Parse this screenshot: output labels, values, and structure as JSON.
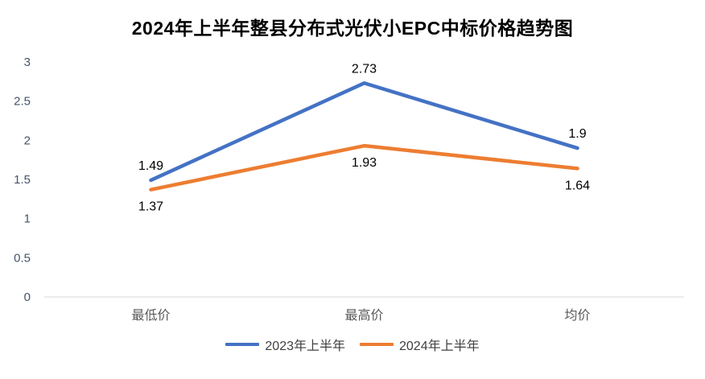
{
  "chart_data": {
    "type": "line",
    "title": "2024年上半年整县分布式光伏小EPC中标价格趋势图",
    "categories": [
      "最低价",
      "最高价",
      "均价"
    ],
    "series": [
      {
        "name": "2023年上半年",
        "color": "#4472C4",
        "values": [
          1.49,
          2.73,
          1.9
        ]
      },
      {
        "name": "2024年上半年",
        "color": "#ED7D31",
        "values": [
          1.37,
          1.93,
          1.64
        ]
      }
    ],
    "yticks": [
      0,
      0.5,
      1,
      1.5,
      2,
      2.5,
      3
    ],
    "ylim": [
      0,
      3
    ],
    "grid": false,
    "legend_position": "bottom"
  },
  "colors": {
    "axis_line": "#D9D9D9",
    "tick_label": "#44546A",
    "category_label": "#595959",
    "data_label": "#000000",
    "background": "#FFFFFF"
  }
}
